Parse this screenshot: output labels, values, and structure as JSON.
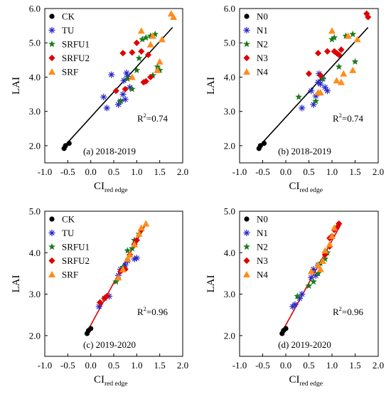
{
  "figure": {
    "colors": {
      "CK": "#000000",
      "TU": "#2626c8",
      "SRFU1": "#1a7a1a",
      "SRFU2": "#e00000",
      "SRF": "#ff8c1a",
      "fit_black": "#000000",
      "fit_red": "#e00000"
    }
  },
  "chart_data": [
    {
      "type": "scatter",
      "panel_label": "(a) 2018-2019",
      "ylabel": "LAI",
      "xlabel_main": "CI",
      "xlabel_sub": "red edge",
      "xlim": [
        -1.0,
        2.0
      ],
      "ylim": [
        1.5,
        6.0
      ],
      "xticks": [
        "-1.0",
        "-0.5",
        "0.0",
        "0.5",
        "1.0",
        "1.5",
        "2.0"
      ],
      "yticks": [
        "2.0",
        "3.0",
        "4.0",
        "5.0",
        "6.0"
      ],
      "r2_label": "R",
      "r2_value": "=0.74",
      "fit_line": {
        "x": [
          -0.6,
          1.78
        ],
        "y": [
          1.95,
          5.45
        ],
        "color": "#000000"
      },
      "series": [
        {
          "name": "CK",
          "marker": "circle",
          "color": "#000000",
          "points": [
            [
              -0.58,
              1.92
            ],
            [
              -0.55,
              2.0
            ],
            [
              -0.47,
              2.07
            ]
          ]
        },
        {
          "name": "TU",
          "marker": "asterisk",
          "color": "#2626c8",
          "points": [
            [
              0.28,
              3.42
            ],
            [
              0.35,
              3.1
            ],
            [
              0.45,
              4.07
            ],
            [
              0.6,
              3.2
            ],
            [
              0.65,
              3.3
            ],
            [
              0.7,
              3.5
            ],
            [
              0.72,
              3.9
            ],
            [
              0.75,
              3.35
            ],
            [
              0.8,
              4.02
            ],
            [
              0.85,
              3.7
            ],
            [
              0.78,
              4.12
            ]
          ]
        },
        {
          "name": "SRFU1",
          "marker": "star",
          "color": "#1a7a1a",
          "points": [
            [
              0.65,
              3.3
            ],
            [
              0.8,
              3.95
            ],
            [
              0.9,
              3.65
            ],
            [
              1.0,
              4.2
            ],
            [
              1.05,
              4.55
            ],
            [
              1.12,
              5.1
            ],
            [
              1.2,
              5.15
            ],
            [
              1.3,
              5.2
            ],
            [
              1.4,
              5.25
            ],
            [
              1.45,
              4.3
            ],
            [
              1.5,
              4.2
            ],
            [
              1.35,
              4.05
            ]
          ]
        },
        {
          "name": "SRFU2",
          "marker": "diamond",
          "color": "#e00000",
          "points": [
            [
              0.55,
              3.6
            ],
            [
              0.7,
              4.7
            ],
            [
              0.75,
              3.65
            ],
            [
              0.9,
              4.72
            ],
            [
              1.1,
              4.75
            ],
            [
              1.15,
              3.85
            ],
            [
              1.2,
              3.88
            ],
            [
              1.0,
              5.0
            ],
            [
              1.25,
              4.65
            ],
            [
              1.3,
              4.0
            ]
          ]
        },
        {
          "name": "SRF",
          "marker": "triangle",
          "color": "#ff8c1a",
          "points": [
            [
              0.9,
              4.0
            ],
            [
              1.1,
              5.35
            ],
            [
              1.3,
              4.95
            ],
            [
              1.35,
              5.2
            ],
            [
              1.45,
              4.2
            ],
            [
              1.5,
              4.45
            ],
            [
              1.55,
              5.1
            ],
            [
              1.75,
              5.85
            ],
            [
              1.8,
              5.75
            ]
          ]
        }
      ],
      "legend": [
        "CK",
        "TU",
        "SRFU1",
        "SRFU2",
        "SRF"
      ]
    },
    {
      "type": "scatter",
      "panel_label": "(b) 2018-2019",
      "ylabel": "LAI",
      "xlabel_main": "CI",
      "xlabel_sub": "red edge",
      "xlim": [
        -1.0,
        2.0
      ],
      "ylim": [
        1.5,
        6.0
      ],
      "xticks": [
        "-1.0",
        "-0.5",
        "0.0",
        "0.5",
        "1.0",
        "1.5",
        "2.0"
      ],
      "yticks": [
        "2.0",
        "3.0",
        "4.0",
        "5.0",
        "6.0"
      ],
      "r2_label": "R",
      "r2_value": "=0.74",
      "fit_line": {
        "x": [
          -0.6,
          1.78
        ],
        "y": [
          1.95,
          5.45
        ],
        "color": "#000000"
      },
      "series": [
        {
          "name": "N0",
          "marker": "circle",
          "color": "#000000",
          "points": [
            [
              -0.58,
              1.92
            ],
            [
              -0.55,
              2.0
            ],
            [
              -0.47,
              2.07
            ]
          ]
        },
        {
          "name": "N1",
          "marker": "asterisk",
          "color": "#2626c8",
          "points": [
            [
              0.35,
              3.1
            ],
            [
              0.55,
              3.6
            ],
            [
              0.6,
              3.2
            ],
            [
              0.65,
              3.45
            ],
            [
              0.7,
              3.85
            ],
            [
              0.75,
              3.8
            ],
            [
              0.8,
              3.95
            ],
            [
              0.72,
              4.1
            ],
            [
              0.85,
              3.7
            ],
            [
              0.9,
              3.6
            ]
          ]
        },
        {
          "name": "N2",
          "marker": "star",
          "color": "#1a7a1a",
          "points": [
            [
              0.28,
              3.42
            ],
            [
              0.65,
              3.3
            ],
            [
              0.8,
              3.95
            ],
            [
              1.0,
              5.1
            ],
            [
              1.05,
              5.15
            ],
            [
              1.3,
              5.2
            ],
            [
              1.45,
              5.25
            ],
            [
              1.5,
              4.45
            ],
            [
              1.15,
              4.3
            ]
          ]
        },
        {
          "name": "N3",
          "marker": "diamond",
          "color": "#e00000",
          "points": [
            [
              0.5,
              4.1
            ],
            [
              0.7,
              4.7
            ],
            [
              0.75,
              4.05
            ],
            [
              0.9,
              4.75
            ],
            [
              1.05,
              4.75
            ],
            [
              1.1,
              4.7
            ],
            [
              1.15,
              4.65
            ],
            [
              1.2,
              4.8
            ],
            [
              1.75,
              5.85
            ],
            [
              1.78,
              5.75
            ]
          ]
        },
        {
          "name": "N4",
          "marker": "triangle",
          "color": "#ff8c1a",
          "points": [
            [
              0.7,
              3.55
            ],
            [
              0.75,
              3.55
            ],
            [
              1.0,
              5.35
            ],
            [
              1.1,
              3.9
            ],
            [
              1.2,
              3.85
            ],
            [
              1.25,
              4.1
            ],
            [
              1.35,
              5.2
            ],
            [
              1.45,
              4.2
            ],
            [
              1.55,
              5.1
            ]
          ]
        }
      ],
      "legend": [
        "N0",
        "N1",
        "N2",
        "N3",
        "N4"
      ]
    },
    {
      "type": "scatter",
      "panel_label": "(c) 2019-2020",
      "ylabel": "LAI",
      "xlabel_main": "CI",
      "xlabel_sub": "red edge",
      "xlim": [
        -1.0,
        2.0
      ],
      "ylim": [
        1.5,
        5.0
      ],
      "xticks": [
        "-1.0",
        "-0.5",
        "0.0",
        "0.5",
        "1.0",
        "1.5",
        "2.0"
      ],
      "yticks": [
        "2.0",
        "3.0",
        "4.0",
        "5.0"
      ],
      "r2_label": "R",
      "r2_value": "=0.96",
      "fit_line": {
        "x": [
          -0.1,
          1.2
        ],
        "y": [
          2.05,
          4.7
        ],
        "color": "#e00000"
      },
      "series": [
        {
          "name": "CK",
          "marker": "circle",
          "color": "#000000",
          "points": [
            [
              -0.08,
              2.05
            ],
            [
              -0.05,
              2.12
            ],
            [
              0.0,
              2.17
            ]
          ]
        },
        {
          "name": "TU",
          "marker": "asterisk",
          "color": "#2626c8",
          "points": [
            [
              0.18,
              2.7
            ],
            [
              0.3,
              2.9
            ],
            [
              0.4,
              2.95
            ],
            [
              0.6,
              3.45
            ],
            [
              0.65,
              3.6
            ],
            [
              0.75,
              3.7
            ],
            [
              0.8,
              3.8
            ],
            [
              0.95,
              3.85
            ],
            [
              1.0,
              3.87
            ]
          ]
        },
        {
          "name": "SRFU1",
          "marker": "star",
          "color": "#1a7a1a",
          "points": [
            [
              0.55,
              3.3
            ],
            [
              0.7,
              3.65
            ],
            [
              0.8,
              4.05
            ],
            [
              0.9,
              4.1
            ],
            [
              0.95,
              4.3
            ],
            [
              1.05,
              4.45
            ]
          ]
        },
        {
          "name": "SRFU2",
          "marker": "diamond",
          "color": "#e00000",
          "points": [
            [
              0.2,
              2.8
            ],
            [
              0.3,
              2.9
            ],
            [
              0.35,
              2.95
            ],
            [
              0.65,
              3.55
            ],
            [
              0.75,
              3.6
            ],
            [
              0.85,
              3.95
            ],
            [
              0.95,
              4.2
            ],
            [
              1.0,
              4.3
            ],
            [
              1.1,
              4.55
            ]
          ]
        },
        {
          "name": "SRF",
          "marker": "triangle",
          "color": "#ff8c1a",
          "points": [
            [
              0.6,
              3.4
            ],
            [
              0.7,
              3.6
            ],
            [
              0.8,
              3.85
            ],
            [
              0.85,
              3.95
            ],
            [
              0.95,
              4.2
            ],
            [
              1.05,
              4.45
            ],
            [
              1.1,
              4.6
            ],
            [
              1.2,
              4.7
            ]
          ]
        }
      ],
      "legend": [
        "CK",
        "TU",
        "SRFU1",
        "SRFU2",
        "SRF"
      ]
    },
    {
      "type": "scatter",
      "panel_label": "(d) 2019-2020",
      "ylabel": "LAI",
      "xlabel_main": "CI",
      "xlabel_sub": "red edge",
      "xlim": [
        -1.0,
        2.0
      ],
      "ylim": [
        1.5,
        5.0
      ],
      "xticks": [
        "-1.0",
        "-0.5",
        "0.0",
        "0.5",
        "1.0",
        "1.5",
        "2.0"
      ],
      "yticks": [
        "2.0",
        "3.0",
        "4.0",
        "5.0"
      ],
      "r2_label": "R",
      "r2_value": "=0.96",
      "fit_line": {
        "x": [
          -0.1,
          1.2
        ],
        "y": [
          2.05,
          4.7
        ],
        "color": "#e00000"
      },
      "series": [
        {
          "name": "N0",
          "marker": "circle",
          "color": "#000000",
          "points": [
            [
              -0.08,
              2.05
            ],
            [
              -0.05,
              2.12
            ],
            [
              0.0,
              2.17
            ]
          ]
        },
        {
          "name": "N1",
          "marker": "asterisk",
          "color": "#2626c8",
          "points": [
            [
              0.15,
              2.7
            ],
            [
              0.2,
              2.75
            ],
            [
              0.3,
              2.9
            ],
            [
              0.35,
              3.0
            ],
            [
              0.55,
              3.4
            ],
            [
              0.6,
              3.6
            ],
            [
              0.65,
              3.45
            ],
            [
              0.7,
              3.7
            ]
          ]
        },
        {
          "name": "N2",
          "marker": "star",
          "color": "#1a7a1a",
          "points": [
            [
              0.25,
              2.95
            ],
            [
              0.5,
              3.2
            ],
            [
              0.6,
              3.3
            ],
            [
              0.7,
              3.5
            ],
            [
              0.75,
              3.75
            ],
            [
              0.85,
              3.85
            ],
            [
              0.9,
              4.0
            ]
          ]
        },
        {
          "name": "N3",
          "marker": "diamond",
          "color": "#e00000",
          "points": [
            [
              0.85,
              3.95
            ],
            [
              0.95,
              4.35
            ],
            [
              1.0,
              4.4
            ],
            [
              1.05,
              4.55
            ],
            [
              1.1,
              4.6
            ],
            [
              1.15,
              4.7
            ],
            [
              0.95,
              4.15
            ]
          ]
        },
        {
          "name": "N4",
          "marker": "triangle",
          "color": "#ff8c1a",
          "points": [
            [
              0.55,
              3.55
            ],
            [
              0.7,
              3.7
            ],
            [
              0.8,
              3.8
            ],
            [
              0.85,
              4.05
            ],
            [
              0.95,
              4.2
            ],
            [
              1.0,
              4.4
            ],
            [
              1.05,
              4.6
            ],
            [
              0.75,
              3.6
            ]
          ]
        }
      ],
      "legend": [
        "N0",
        "N1",
        "N2",
        "N3",
        "N4"
      ]
    }
  ]
}
